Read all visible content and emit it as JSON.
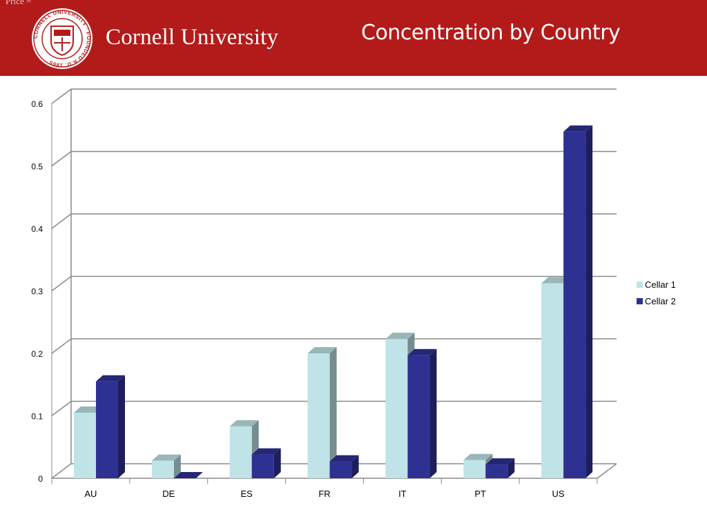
{
  "header": {
    "corner_note": "Price =",
    "wordmark": "Cornell University",
    "title": "Concentration by Country",
    "seal_text": "CORNELL UNIVERSITY · FOUNDED A.D. 1865",
    "seal_icon": "cornell-seal-icon"
  },
  "colors": {
    "header_bg": "#b31b1b",
    "cellar1": "#bfe3e6",
    "cellar2": "#2e3192"
  },
  "chart_data": {
    "type": "bar",
    "title": "",
    "xlabel": "",
    "ylabel": "",
    "ylim": [
      0,
      0.6
    ],
    "yticks": [
      "0",
      "0.1",
      "0.2",
      "0.3",
      "0.4",
      "0.5",
      "0.6"
    ],
    "categories": [
      "AU",
      "DE",
      "ES",
      "FR",
      "IT",
      "PT",
      "US"
    ],
    "series": [
      {
        "name": "Cellar 1",
        "values": [
          0.105,
          0.028,
          0.083,
          0.2,
          0.223,
          0.029,
          0.312
        ]
      },
      {
        "name": "Cellar 2",
        "values": [
          0.155,
          0.0,
          0.038,
          0.027,
          0.197,
          0.022,
          0.555
        ]
      }
    ],
    "grid": true,
    "legend_position": "right",
    "style": "3d-clustered-column"
  }
}
